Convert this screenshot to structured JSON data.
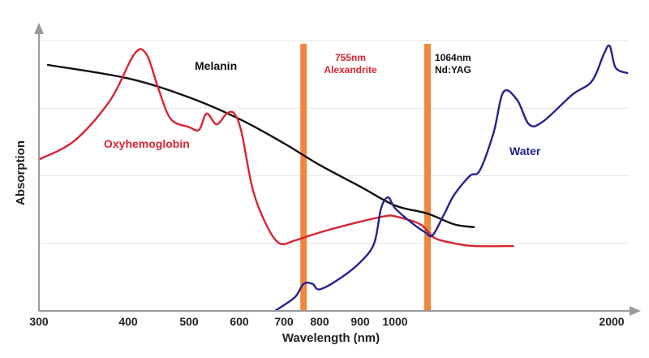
{
  "chart_data": {
    "type": "line",
    "xlabel": "Wavelength (nm)",
    "ylabel": "Absorption",
    "x_ticks": [
      "300",
      "400",
      "500",
      "600",
      "700",
      "800",
      "900",
      "1000",
      "2000"
    ],
    "grid": "horizontal",
    "series": [
      {
        "name": "Melanin",
        "color": "#111111",
        "points": [
          [
            310,
            0.91
          ],
          [
            400,
            0.86
          ],
          [
            500,
            0.79
          ],
          [
            600,
            0.71
          ],
          [
            700,
            0.62
          ],
          [
            800,
            0.54
          ],
          [
            900,
            0.46
          ],
          [
            1000,
            0.39
          ],
          [
            1064,
            0.36
          ],
          [
            1200,
            0.32
          ],
          [
            1300,
            0.31
          ]
        ]
      },
      {
        "name": "Oxyhemoglobin",
        "color": "#d9242f",
        "points": [
          [
            300,
            0.56
          ],
          [
            340,
            0.63
          ],
          [
            380,
            0.78
          ],
          [
            410,
            0.95
          ],
          [
            430,
            0.95
          ],
          [
            450,
            0.82
          ],
          [
            470,
            0.71
          ],
          [
            500,
            0.68
          ],
          [
            520,
            0.67
          ],
          [
            535,
            0.73
          ],
          [
            555,
            0.69
          ],
          [
            575,
            0.73
          ],
          [
            590,
            0.73
          ],
          [
            605,
            0.66
          ],
          [
            630,
            0.45
          ],
          [
            660,
            0.32
          ],
          [
            690,
            0.25
          ],
          [
            730,
            0.26
          ],
          [
            800,
            0.29
          ],
          [
            900,
            0.33
          ],
          [
            970,
            0.35
          ],
          [
            1000,
            0.35
          ],
          [
            1050,
            0.32
          ],
          [
            1100,
            0.27
          ],
          [
            1200,
            0.25
          ],
          [
            1300,
            0.24
          ],
          [
            1500,
            0.24
          ]
        ]
      },
      {
        "name": "Water",
        "color": "#23238e",
        "points": [
          [
            680,
            0.0
          ],
          [
            730,
            0.05
          ],
          [
            755,
            0.1
          ],
          [
            780,
            0.1
          ],
          [
            800,
            0.08
          ],
          [
            850,
            0.12
          ],
          [
            900,
            0.18
          ],
          [
            940,
            0.25
          ],
          [
            960,
            0.38
          ],
          [
            980,
            0.42
          ],
          [
            1000,
            0.38
          ],
          [
            1030,
            0.33
          ],
          [
            1060,
            0.29
          ],
          [
            1090,
            0.28
          ],
          [
            1150,
            0.36
          ],
          [
            1200,
            0.43
          ],
          [
            1280,
            0.5
          ],
          [
            1330,
            0.52
          ],
          [
            1400,
            0.66
          ],
          [
            1450,
            0.81
          ],
          [
            1520,
            0.78
          ],
          [
            1580,
            0.69
          ],
          [
            1650,
            0.7
          ],
          [
            1800,
            0.8
          ],
          [
            1900,
            0.85
          ],
          [
            1960,
            0.95
          ],
          [
            1990,
            0.98
          ],
          [
            2020,
            0.9
          ],
          [
            2080,
            0.88
          ]
        ]
      }
    ],
    "lasers": [
      {
        "line1": "755nm",
        "line2": "Alexandrite",
        "wavelength": 755,
        "color": "#f07a2a",
        "text_color": "#d9242f"
      },
      {
        "line1": "1064nm",
        "line2": "Nd:YAG",
        "wavelength": 1064,
        "color": "#f07a2a",
        "text_color": "#111111"
      }
    ]
  }
}
